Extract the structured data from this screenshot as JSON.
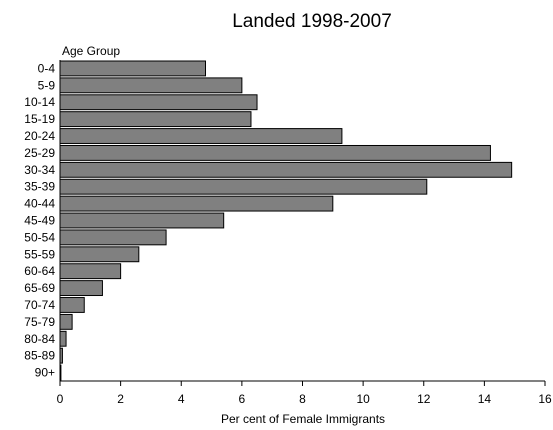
{
  "chart_data": {
    "type": "bar",
    "orientation": "horizontal",
    "title": "Landed 1998-2007",
    "ylabel": "Age Group",
    "xlabel": "Per cent of Female Immigrants",
    "categories": [
      "0-4",
      "5-9",
      "10-14",
      "15-19",
      "20-24",
      "25-29",
      "30-34",
      "35-39",
      "40-44",
      "45-49",
      "50-54",
      "55-59",
      "60-64",
      "65-69",
      "70-74",
      "75-79",
      "80-84",
      "85-89",
      "90+"
    ],
    "values": [
      4.8,
      6.0,
      6.5,
      6.3,
      9.3,
      14.2,
      14.9,
      12.1,
      9.0,
      5.4,
      3.5,
      2.6,
      2.0,
      1.4,
      0.8,
      0.4,
      0.2,
      0.08,
      0.03
    ],
    "xlim": [
      0,
      16
    ],
    "xticks": [
      0,
      2,
      4,
      6,
      8,
      10,
      12,
      14,
      16
    ],
    "grid": false,
    "legend": "none",
    "bar_color": "#808080"
  }
}
